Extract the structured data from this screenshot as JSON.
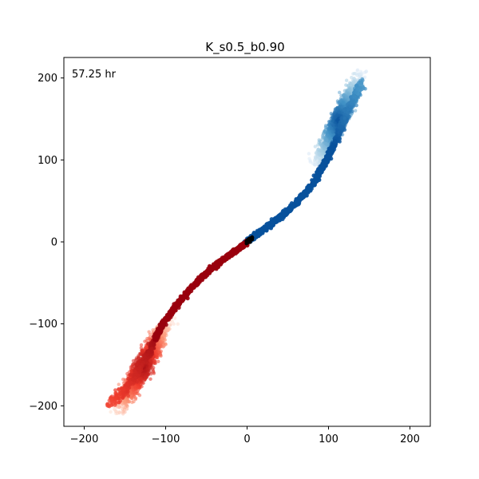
{
  "chart_data": {
    "type": "scatter",
    "title": "K_s0.5_b0.90",
    "xlabel": "",
    "ylabel": "",
    "xlim": [
      -225,
      225
    ],
    "ylim": [
      -225,
      225
    ],
    "xticks": [
      -200,
      -100,
      0,
      100,
      200
    ],
    "yticks": [
      -200,
      -100,
      0,
      100,
      200
    ],
    "xtick_labels": [
      "−200",
      "−100",
      "0",
      "100",
      "200"
    ],
    "ytick_labels": [
      "−200",
      "−100",
      "0",
      "100",
      "200"
    ],
    "grid": false,
    "annotation": "57.25 hr",
    "series": [
      {
        "colormap": "Blues",
        "color": "#08519c",
        "path": [
          [
            0,
            0
          ],
          [
            10,
            8
          ],
          [
            20,
            15
          ],
          [
            30,
            22
          ],
          [
            40,
            30
          ],
          [
            50,
            38
          ],
          [
            60,
            47
          ],
          [
            70,
            58
          ],
          [
            80,
            70
          ],
          [
            90,
            86
          ],
          [
            100,
            105
          ],
          [
            110,
            125
          ],
          [
            120,
            150
          ],
          [
            130,
            172
          ],
          [
            140,
            195
          ]
        ],
        "cloud_center": [
          112,
          148
        ],
        "cloud_spread": [
          17,
          27
        ],
        "cloud_extent_x": [
          63,
          150
        ],
        "cloud_extent_y": [
          93,
          210
        ]
      },
      {
        "colormap": "Reds",
        "color": "#99000d",
        "path": [
          [
            0,
            0
          ],
          [
            -10,
            -8
          ],
          [
            -20,
            -15
          ],
          [
            -30,
            -22
          ],
          [
            -40,
            -30
          ],
          [
            -50,
            -38
          ],
          [
            -60,
            -47
          ],
          [
            -70,
            -58
          ],
          [
            -80,
            -70
          ],
          [
            -90,
            -82
          ],
          [
            -100,
            -95
          ],
          [
            -110,
            -112
          ],
          [
            -120,
            -135
          ],
          [
            -135,
            -160
          ],
          [
            -150,
            -180
          ],
          [
            -170,
            -198
          ]
        ],
        "cloud_center": [
          -128,
          -152
        ],
        "cloud_spread": [
          20,
          28
        ],
        "cloud_extent_x": [
          -180,
          -65
        ],
        "cloud_extent_y": [
          -210,
          -88
        ]
      }
    ],
    "origin_marker_color": "#000000"
  }
}
